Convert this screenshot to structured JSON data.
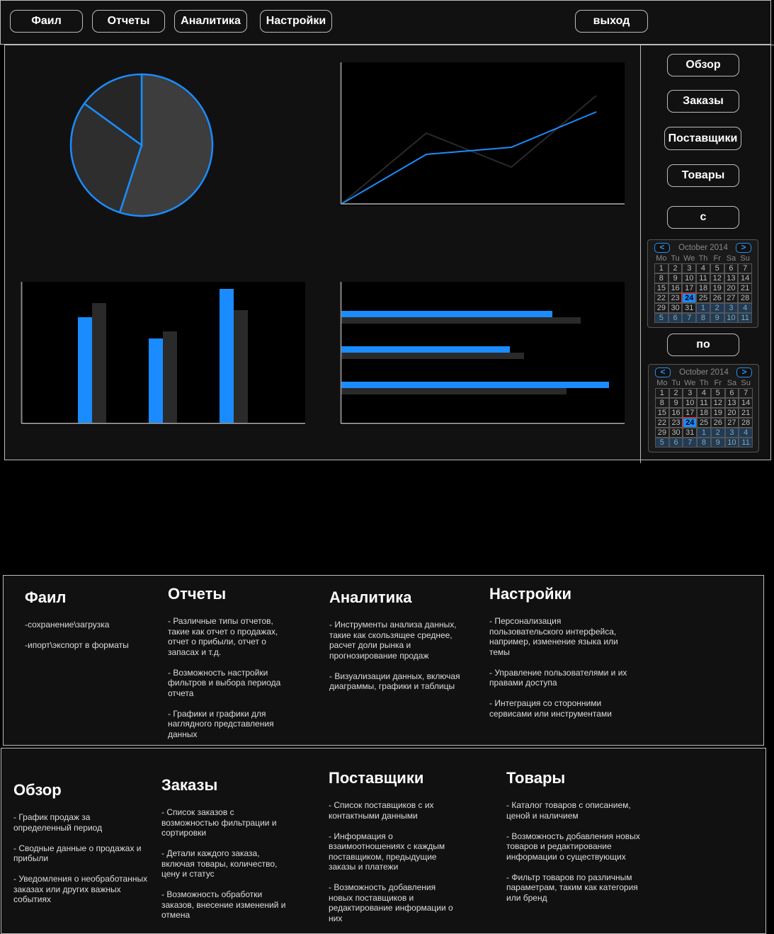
{
  "topbar": {
    "file_label": "Фаил",
    "reports_label": "Отчеты",
    "analytics_label": "Аналитика",
    "settings_label": "Настройки",
    "logout_label": "выход"
  },
  "sidebar": {
    "overview_label": "Обзор",
    "orders_label": "Заказы",
    "suppliers_label": "Поставщики",
    "products_label": "Товары",
    "from_label": "с",
    "to_label": "по"
  },
  "calendar": {
    "title": "October 2014",
    "prev": "<",
    "next": ">",
    "weekdays": [
      "Mo",
      "Tu",
      "We",
      "Th",
      "Fr",
      "Sa",
      "Su"
    ],
    "days": [
      "1",
      "2",
      "3",
      "4",
      "5",
      "6",
      "7",
      "8",
      "9",
      "10",
      "11",
      "12",
      "13",
      "14",
      "15",
      "16",
      "17",
      "18",
      "19",
      "20",
      "21",
      "22",
      "23",
      "24",
      "25",
      "26",
      "27",
      "28",
      "29",
      "30",
      "31",
      "1",
      "2",
      "3",
      "4",
      "5",
      "6",
      "7",
      "8",
      "9",
      "10",
      "11"
    ],
    "selected": "24"
  },
  "colors": {
    "accent": "#1a8cff",
    "secondary": "#2a2a2a",
    "background": "#111111"
  },
  "chart_data": [
    {
      "type": "pie",
      "values": [
        55,
        30,
        15
      ]
    },
    {
      "type": "line",
      "x": [
        0,
        1,
        2,
        3
      ],
      "series": [
        {
          "values": [
            0,
            100,
            52,
            153
          ]
        },
        {
          "values": [
            0,
            70,
            80,
            130
          ]
        }
      ],
      "ylim": [
        0,
        200
      ]
    },
    {
      "type": "bar",
      "categories": [
        "",
        "",
        ""
      ],
      "series": [
        {
          "values": [
            150,
            120,
            190
          ]
        },
        {
          "values": [
            170,
            130,
            160
          ]
        }
      ],
      "ylim": [
        0,
        200
      ]
    },
    {
      "type": "bar",
      "orientation": "horizontal",
      "categories": [
        "",
        "",
        ""
      ],
      "series": [
        {
          "values": [
            300,
            240,
            380
          ]
        },
        {
          "values": [
            340,
            260,
            320
          ]
        }
      ],
      "xlim": [
        0,
        400
      ]
    }
  ],
  "panels": {
    "menu": {
      "file": {
        "title": "Фаил",
        "text": "-сохранение\\загрузка\n\n-ипорт\\экспорт в форматы"
      },
      "reports": {
        "title": "Отчеты",
        "text": " - Различные типы отчетов, такие как отчет о продажах, отчет о прибыли, отчет о запасах и т.д.\n\n    - Возможность настройки фильтров и выбора периода отчета\n\n    - Графики и графики для наглядного представления данных"
      },
      "analytics": {
        "title": "Аналитика",
        "text": "- Инструменты анализа данных, такие как скользящее среднее, расчет доли рынка и прогнозирование продаж\n\n    - Визуализации данных, включая диаграммы, графики и таблицы"
      },
      "settings": {
        "title": "Настройки",
        "text": "   - Персонализация пользовательского интерфейса, например, изменение языка или темы\n\n    - Управление пользователями и их правами доступа\n\n    - Интеграция со сторонними сервисами или инструментами"
      }
    },
    "sections": {
      "overview": {
        "title": "Обзор",
        "text": " - График продаж за определенный период\n\n    - Сводные данные о продажах и прибыли\n\n    - Уведомления о необработанных заказах или других важных событиях"
      },
      "orders": {
        "title": "Заказы",
        "text": "- Список заказов с возможностью фильтрации и сортировки\n\n    - Детали каждого заказа, включая товары, количество, цену и статус\n\n    - Возможность обработки заказов, внесение изменений и отмена"
      },
      "suppliers": {
        "title": "Поставщики",
        "text": " - Список поставщиков с их контактными данными\n\n    - Информация о взаимоотношениях с каждым поставщиком, предыдущие заказы и платежи\n\n    - Возможность добавления новых поставщиков и редактирование информации о них"
      },
      "products": {
        "title": "Товары",
        "text": " - Каталог товаров с описанием, ценой и наличием\n\n    - Возможность добавления новых товаров и редактирование информации о существующих\n\n    - Фильтр товаров по различным параметрам, таким как категория или бренд"
      }
    }
  }
}
